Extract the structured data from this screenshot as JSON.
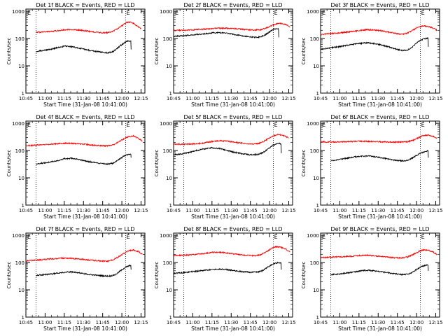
{
  "figure": {
    "colors": {
      "events": "#000000",
      "lld": "#ff0000",
      "axes": "#000000",
      "background": "#ffffff"
    },
    "x_ticks": [
      "10:45",
      "11:00",
      "11:15",
      "11:30",
      "11:45",
      "12:00",
      "12:15"
    ],
    "y_ticks": [
      "1",
      "10",
      "100",
      "1000"
    ],
    "ylabel": "Counts/sec",
    "marker_labels": [
      "E",
      "E"
    ]
  },
  "chart_data": [
    {
      "type": "line",
      "title": "Det 1f BLACK = Events, RED = LLD",
      "xlabel": "Start Time (31-Jan-08 10:41:00)",
      "ylabel": "Counts/sec",
      "x_unit": "minutes after 10:41:00",
      "xlim": [
        4,
        97
      ],
      "ylim": [
        1,
        1200
      ],
      "y_scale": "log",
      "grid": false,
      "x_ticks": [
        "10:45",
        "11:00",
        "11:15",
        "11:30",
        "11:45",
        "12:00",
        "12:15"
      ],
      "y_ticks": [
        1,
        10,
        100,
        1000
      ],
      "vlines": [
        12,
        82
      ],
      "vline_labels": [
        "E",
        "E"
      ],
      "series": [
        {
          "color": "#ff0000",
          "x": [
            12,
            18,
            25,
            32,
            40,
            48,
            55,
            62,
            68,
            72,
            76,
            80,
            83,
            86,
            88,
            90,
            92,
            94
          ],
          "values": [
            170,
            175,
            185,
            205,
            215,
            200,
            180,
            165,
            165,
            185,
            235,
            320,
            390,
            400,
            360,
            310,
            260,
            230
          ]
        },
        {
          "color": "#000000",
          "x": [
            12,
            16,
            20,
            25,
            30,
            35,
            40,
            45,
            50,
            55,
            60,
            65,
            68,
            72,
            75,
            78,
            80,
            82,
            84,
            86,
            86.2
          ],
          "values": [
            33,
            36,
            38,
            42,
            48,
            53,
            50,
            45,
            40,
            36,
            33,
            31,
            30,
            33,
            42,
            55,
            65,
            75,
            82,
            80,
            40
          ]
        }
      ]
    },
    {
      "type": "line",
      "title": "Det 2f BLACK = Events, RED = LLD",
      "xlabel": "Start Time (31-Jan-08 10:41:00)",
      "ylabel": "Counts/sec",
      "x_unit": "minutes after 10:41:00",
      "xlim": [
        4,
        97
      ],
      "ylim": [
        1,
        1200
      ],
      "y_scale": "log",
      "grid": false,
      "x_ticks": [
        "10:45",
        "11:00",
        "11:15",
        "11:30",
        "11:45",
        "12:00",
        "12:15"
      ],
      "y_ticks": [
        1,
        10,
        100,
        1000
      ],
      "vlines": [
        12,
        82
      ],
      "vline_labels": [
        "E",
        "E"
      ],
      "series": [
        {
          "color": "#ff0000",
          "x": [
            4,
            12,
            20,
            28,
            36,
            44,
            52,
            60,
            66,
            72,
            76,
            80,
            84,
            88,
            92,
            95
          ],
          "values": [
            200,
            200,
            210,
            220,
            235,
            240,
            230,
            215,
            205,
            210,
            240,
            290,
            340,
            360,
            320,
            260
          ]
        },
        {
          "color": "#000000",
          "x": [
            4,
            10,
            18,
            26,
            34,
            40,
            46,
            52,
            58,
            64,
            68,
            72,
            76,
            80,
            83,
            86,
            86.2
          ],
          "values": [
            120,
            125,
            135,
            145,
            160,
            165,
            158,
            140,
            125,
            115,
            110,
            115,
            140,
            190,
            230,
            220,
            110
          ]
        }
      ]
    },
    {
      "type": "line",
      "title": "Det 3f BLACK = Events, RED = LLD",
      "xlabel": "Start Time (31-Jan-08 10:41:00)",
      "ylabel": "Counts/sec",
      "x_unit": "minutes after 10:41:00",
      "xlim": [
        4,
        97
      ],
      "ylim": [
        1,
        1200
      ],
      "y_scale": "log",
      "grid": false,
      "x_ticks": [
        "10:45",
        "11:00",
        "11:15",
        "11:30",
        "11:45",
        "12:00",
        "12:15"
      ],
      "y_ticks": [
        1,
        10,
        100,
        1000
      ],
      "vlines": [
        12,
        82
      ],
      "vline_labels": [
        "E",
        "E"
      ],
      "series": [
        {
          "color": "#ff0000",
          "x": [
            4,
            10,
            18,
            26,
            34,
            40,
            46,
            52,
            58,
            64,
            68,
            72,
            76,
            80,
            84,
            88,
            92,
            95
          ],
          "values": [
            140,
            150,
            160,
            175,
            195,
            210,
            205,
            190,
            170,
            150,
            145,
            160,
            200,
            260,
            290,
            280,
            240,
            200
          ]
        },
        {
          "color": "#000000",
          "x": [
            4,
            10,
            18,
            26,
            34,
            40,
            46,
            52,
            58,
            64,
            68,
            72,
            76,
            80,
            84,
            88,
            88.2
          ],
          "values": [
            40,
            45,
            50,
            58,
            65,
            70,
            66,
            58,
            48,
            40,
            36,
            38,
            50,
            75,
            95,
            105,
            50
          ]
        }
      ]
    },
    {
      "type": "line",
      "title": "Det 4f BLACK = Events, RED = LLD",
      "xlabel": "Start Time (31-Jan-08 10:41:00)",
      "ylabel": "Counts/sec",
      "x_unit": "minutes after 10:41:00",
      "xlim": [
        4,
        97
      ],
      "ylim": [
        1,
        1200
      ],
      "y_scale": "log",
      "grid": false,
      "x_ticks": [
        "10:45",
        "11:00",
        "11:15",
        "11:30",
        "11:45",
        "12:00",
        "12:15"
      ],
      "y_ticks": [
        1,
        10,
        100,
        1000
      ],
      "vlines": [
        12,
        82
      ],
      "vline_labels": [
        "E",
        "E"
      ],
      "series": [
        {
          "color": "#ff0000",
          "x": [
            4,
            10,
            18,
            26,
            34,
            40,
            46,
            52,
            58,
            64,
            68,
            72,
            76,
            80,
            84,
            88,
            92,
            95
          ],
          "values": [
            150,
            155,
            165,
            175,
            185,
            185,
            175,
            165,
            155,
            150,
            150,
            160,
            200,
            260,
            320,
            340,
            280,
            220
          ]
        },
        {
          "color": "#000000",
          "x": [
            12,
            16,
            22,
            28,
            34,
            40,
            46,
            52,
            58,
            64,
            68,
            72,
            76,
            80,
            84,
            86,
            86.2
          ],
          "values": [
            32,
            34,
            37,
            42,
            50,
            52,
            46,
            40,
            36,
            33,
            32,
            34,
            45,
            60,
            72,
            75,
            55
          ]
        }
      ]
    },
    {
      "type": "line",
      "title": "Det 5f BLACK = Events, RED = LLD",
      "xlabel": "Start Time (31-Jan-08 10:41:00)",
      "ylabel": "Counts/sec",
      "x_unit": "minutes after 10:41:00",
      "xlim": [
        4,
        97
      ],
      "ylim": [
        1,
        1200
      ],
      "y_scale": "log",
      "grid": false,
      "x_ticks": [
        "10:45",
        "11:00",
        "11:15",
        "11:30",
        "11:45",
        "12:00",
        "12:15"
      ],
      "y_ticks": [
        1,
        10,
        100,
        1000
      ],
      "vlines": [
        12,
        82
      ],
      "vline_labels": [
        "E",
        "E"
      ],
      "series": [
        {
          "color": "#ff0000",
          "x": [
            4,
            12,
            20,
            28,
            34,
            40,
            46,
            52,
            58,
            64,
            70,
            74,
            78,
            82,
            86,
            90,
            94
          ],
          "values": [
            170,
            170,
            175,
            190,
            215,
            230,
            220,
            200,
            185,
            175,
            180,
            210,
            270,
            350,
            390,
            350,
            290
          ]
        },
        {
          "color": "#000000",
          "x": [
            4,
            10,
            16,
            22,
            28,
            34,
            40,
            46,
            52,
            58,
            64,
            70,
            74,
            78,
            82,
            86,
            88,
            88.2
          ],
          "values": [
            70,
            75,
            85,
            100,
            115,
            125,
            118,
            100,
            85,
            75,
            70,
            72,
            85,
            115,
            160,
            190,
            170,
            80
          ]
        }
      ]
    },
    {
      "type": "line",
      "title": "Det 6f BLACK = Events, RED = LLD",
      "xlabel": "Start Time (31-Jan-08 10:41:00)",
      "ylabel": "Counts/sec",
      "x_unit": "minutes after 10:41:00",
      "xlim": [
        4,
        97
      ],
      "ylim": [
        1,
        1200
      ],
      "y_scale": "log",
      "grid": false,
      "x_ticks": [
        "10:45",
        "11:00",
        "11:15",
        "11:30",
        "11:45",
        "12:00",
        "12:15"
      ],
      "y_ticks": [
        1,
        10,
        100,
        1000
      ],
      "vlines": [
        12,
        82
      ],
      "vline_labels": [
        "E",
        "E"
      ],
      "series": [
        {
          "color": "#ff0000",
          "x": [
            4,
            12,
            20,
            28,
            36,
            44,
            52,
            60,
            66,
            72,
            76,
            80,
            84,
            88,
            92,
            95
          ],
          "values": [
            210,
            205,
            210,
            215,
            220,
            215,
            210,
            205,
            205,
            210,
            235,
            290,
            350,
            370,
            330,
            270
          ]
        },
        {
          "color": "#000000",
          "x": [
            12,
            18,
            24,
            30,
            36,
            42,
            48,
            54,
            60,
            66,
            70,
            74,
            78,
            82,
            86,
            88,
            88.2
          ],
          "values": [
            42,
            46,
            52,
            58,
            62,
            63,
            58,
            52,
            46,
            42,
            42,
            48,
            62,
            80,
            95,
            95,
            55
          ]
        }
      ]
    },
    {
      "type": "line",
      "title": "Det 7f BLACK = Events, RED = LLD",
      "xlabel": "Start Time (31-Jan-08 10:41:00)",
      "ylabel": "Counts/sec",
      "x_unit": "minutes after 10:41:00",
      "xlim": [
        4,
        97
      ],
      "ylim": [
        1,
        1200
      ],
      "y_scale": "log",
      "grid": false,
      "x_ticks": [
        "10:45",
        "11:00",
        "11:15",
        "11:30",
        "11:45",
        "12:00",
        "12:15"
      ],
      "y_ticks": [
        1,
        10,
        100,
        1000
      ],
      "vlines": [
        12,
        82
      ],
      "vline_labels": [
        "E",
        "E"
      ],
      "series": [
        {
          "color": "#ff0000",
          "x": [
            4,
            10,
            16,
            22,
            28,
            34,
            40,
            46,
            52,
            58,
            64,
            68,
            72,
            76,
            80,
            84,
            88,
            92,
            95
          ],
          "values": [
            115,
            120,
            125,
            135,
            140,
            145,
            142,
            135,
            125,
            118,
            112,
            112,
            125,
            160,
            210,
            270,
            290,
            250,
            200
          ]
        },
        {
          "color": "#000000",
          "x": [
            12,
            18,
            24,
            30,
            36,
            42,
            48,
            54,
            60,
            66,
            70,
            74,
            78,
            82,
            86,
            86.2
          ],
          "values": [
            34,
            36,
            38,
            42,
            45,
            45,
            40,
            36,
            34,
            32,
            32,
            36,
            50,
            68,
            80,
            55
          ]
        }
      ]
    },
    {
      "type": "line",
      "title": "Det 8f BLACK = Events, RED = LLD",
      "xlabel": "Start Time (31-Jan-08 10:41:00)",
      "ylabel": "Counts/sec",
      "x_unit": "minutes after 10:41:00",
      "xlim": [
        4,
        97
      ],
      "ylim": [
        1,
        1200
      ],
      "y_scale": "log",
      "grid": false,
      "x_ticks": [
        "10:45",
        "11:00",
        "11:15",
        "11:30",
        "11:45",
        "12:00",
        "12:15"
      ],
      "y_ticks": [
        1,
        10,
        100,
        1000
      ],
      "vlines": [
        12,
        82
      ],
      "vline_labels": [
        "E",
        "E"
      ],
      "series": [
        {
          "color": "#ff0000",
          "x": [
            4,
            10,
            16,
            22,
            28,
            34,
            40,
            46,
            52,
            58,
            64,
            68,
            72,
            76,
            80,
            84,
            88,
            92,
            95
          ],
          "values": [
            180,
            185,
            190,
            200,
            215,
            235,
            240,
            225,
            205,
            190,
            180,
            178,
            195,
            240,
            320,
            380,
            360,
            300,
            240
          ]
        },
        {
          "color": "#000000",
          "x": [
            4,
            10,
            16,
            22,
            28,
            34,
            40,
            46,
            52,
            58,
            64,
            70,
            74,
            78,
            82,
            86,
            88,
            88.2
          ],
          "values": [
            40,
            42,
            45,
            48,
            52,
            56,
            58,
            55,
            50,
            46,
            44,
            45,
            52,
            70,
            90,
            100,
            95,
            55
          ]
        }
      ]
    },
    {
      "type": "line",
      "title": "Det 9f BLACK = Events, RED = LLD",
      "xlabel": "Start Time (31-Jan-08 10:41:00)",
      "ylabel": "Counts/sec",
      "x_unit": "minutes after 10:41:00",
      "xlim": [
        4,
        97
      ],
      "ylim": [
        1,
        1200
      ],
      "y_scale": "log",
      "grid": false,
      "x_ticks": [
        "10:45",
        "11:00",
        "11:15",
        "11:30",
        "11:45",
        "12:00",
        "12:15"
      ],
      "y_ticks": [
        1,
        10,
        100,
        1000
      ],
      "vlines": [
        12,
        82
      ],
      "vline_labels": [
        "E",
        "E"
      ],
      "series": [
        {
          "color": "#ff0000",
          "x": [
            4,
            10,
            16,
            22,
            28,
            34,
            40,
            46,
            52,
            58,
            64,
            68,
            72,
            76,
            80,
            84,
            88,
            92,
            95
          ],
          "values": [
            150,
            155,
            160,
            165,
            170,
            180,
            185,
            178,
            165,
            155,
            148,
            148,
            160,
            195,
            245,
            290,
            285,
            240,
            200
          ]
        },
        {
          "color": "#000000",
          "x": [
            12,
            18,
            24,
            30,
            36,
            42,
            48,
            54,
            60,
            66,
            70,
            74,
            78,
            82,
            86,
            88,
            88.2
          ],
          "values": [
            36,
            38,
            41,
            45,
            50,
            52,
            48,
            44,
            40,
            37,
            36,
            40,
            52,
            68,
            80,
            82,
            50
          ]
        }
      ]
    }
  ]
}
